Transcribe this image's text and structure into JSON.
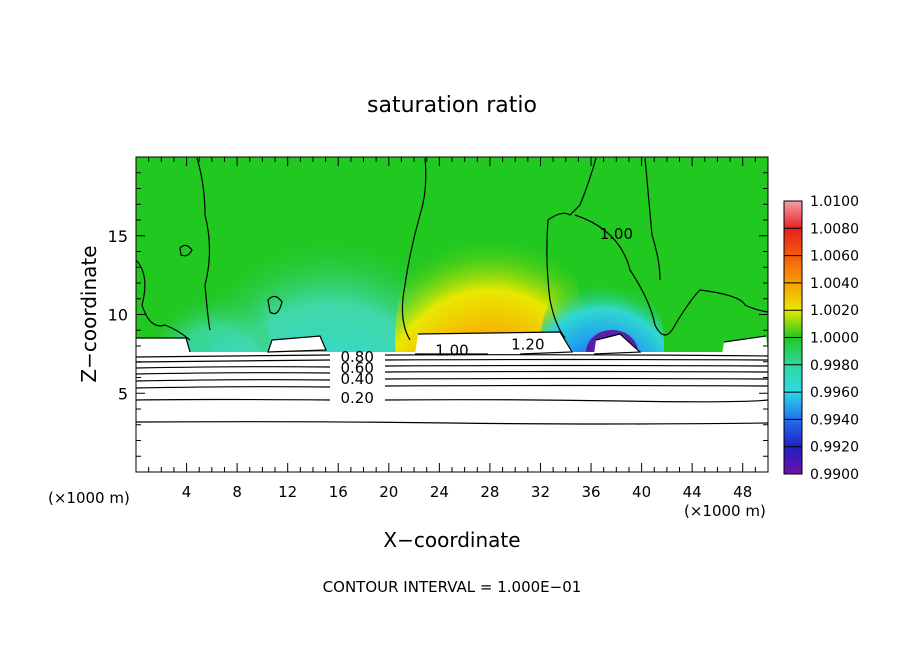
{
  "chart_data": {
    "type": "heatmap",
    "title": "saturation ratio",
    "xlabel": "X−coordinate",
    "ylabel": "Z−coordinate",
    "x_unit": "(×1000 m)",
    "y_unit": "(×1000 m)",
    "xlim": [
      0,
      50
    ],
    "ylim": [
      0,
      20
    ],
    "x_ticks": [
      "4",
      "8",
      "12",
      "16",
      "20",
      "24",
      "28",
      "32",
      "36",
      "40",
      "44",
      "48"
    ],
    "y_ticks": [
      "5",
      "10",
      "15"
    ],
    "colorbar": {
      "labels": [
        "1.0100",
        "1.0080",
        "1.0060",
        "1.0040",
        "1.0020",
        "1.0000",
        "0.9980",
        "0.9960",
        "0.9940",
        "0.9920",
        "0.9900"
      ],
      "colors": [
        "#f4a0a8",
        "#e82020",
        "#f45a10",
        "#f8a000",
        "#e8e800",
        "#20c820",
        "#30d8a0",
        "#30d8e8",
        "#2070f0",
        "#2020c0",
        "#7010a8"
      ]
    },
    "contour_labels": [
      {
        "text": "0.20",
        "x": 17.5,
        "y": 4.7
      },
      {
        "text": "0.40",
        "x": 17.5,
        "y": 5.9
      },
      {
        "text": "0.60",
        "x": 17.5,
        "y": 6.6
      },
      {
        "text": "0.80",
        "x": 17.5,
        "y": 7.3
      },
      {
        "text": "1.00",
        "x": 25.0,
        "y": 7.7
      },
      {
        "text": "1.20",
        "x": 31.0,
        "y": 8.1
      },
      {
        "text": "1.00",
        "x": 38.0,
        "y": 15.1
      }
    ],
    "contour_interval_text": "CONTOUR INTERVAL = 1.000E−01"
  }
}
